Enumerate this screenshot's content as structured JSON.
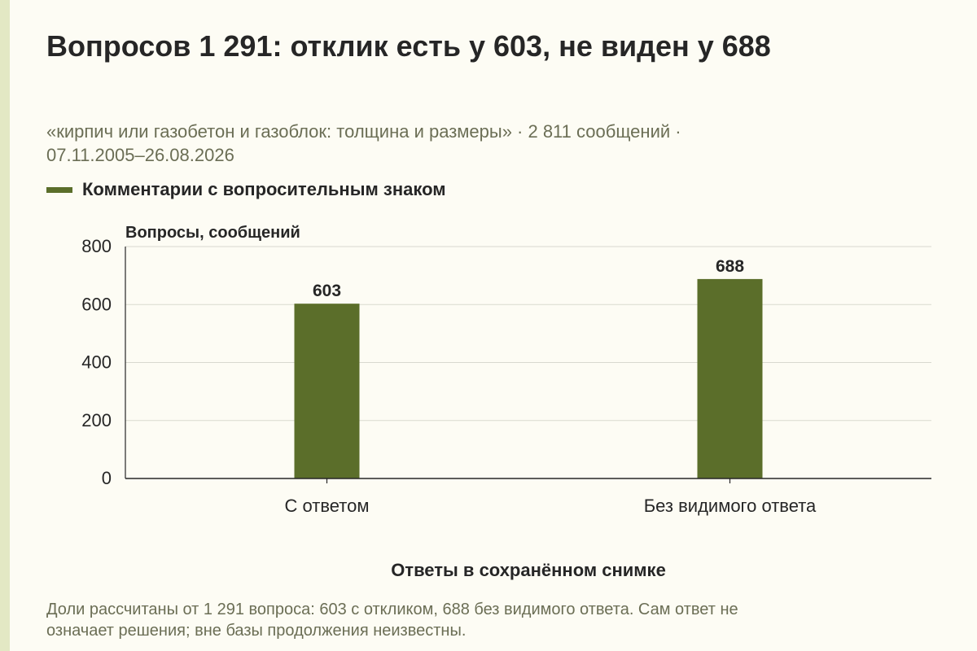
{
  "header": {
    "title": "Вопросов 1 291: отклик есть у 603, не виден у 688",
    "subtitle_line1": "«кирпич или газобетон и газоблок: толщина и размеры» · 2 811 сообщений ·",
    "subtitle_line2": "07.11.2005–26.08.2026"
  },
  "legend": {
    "label": "Комментарии с вопросительным знаком",
    "color": "#5b6e2a"
  },
  "chart_data": {
    "type": "bar",
    "categories": [
      "С ответом",
      "Без видимого ответа"
    ],
    "series": [
      {
        "name": "Комментарии с вопросительным знаком",
        "values": [
          603,
          688
        ]
      }
    ],
    "value_labels": [
      "603",
      "688"
    ],
    "ylabel": "Вопросы, сообщений",
    "xlabel": "Ответы в сохранённом снимке",
    "ylim": [
      0,
      800
    ],
    "yticks": [
      0,
      200,
      400,
      600,
      800
    ],
    "ytick_labels": [
      "0",
      "200",
      "400",
      "600",
      "800"
    ],
    "grid": true,
    "legend_position": "top-left",
    "bar_color": "#5b6e2a"
  },
  "footnote": {
    "line1": "Доли рассчитаны от 1 291 вопроса: 603 с откликом, 688 без видимого ответа. Сам ответ не",
    "line2": "означает решения; вне базы продолжения неизвестны."
  }
}
